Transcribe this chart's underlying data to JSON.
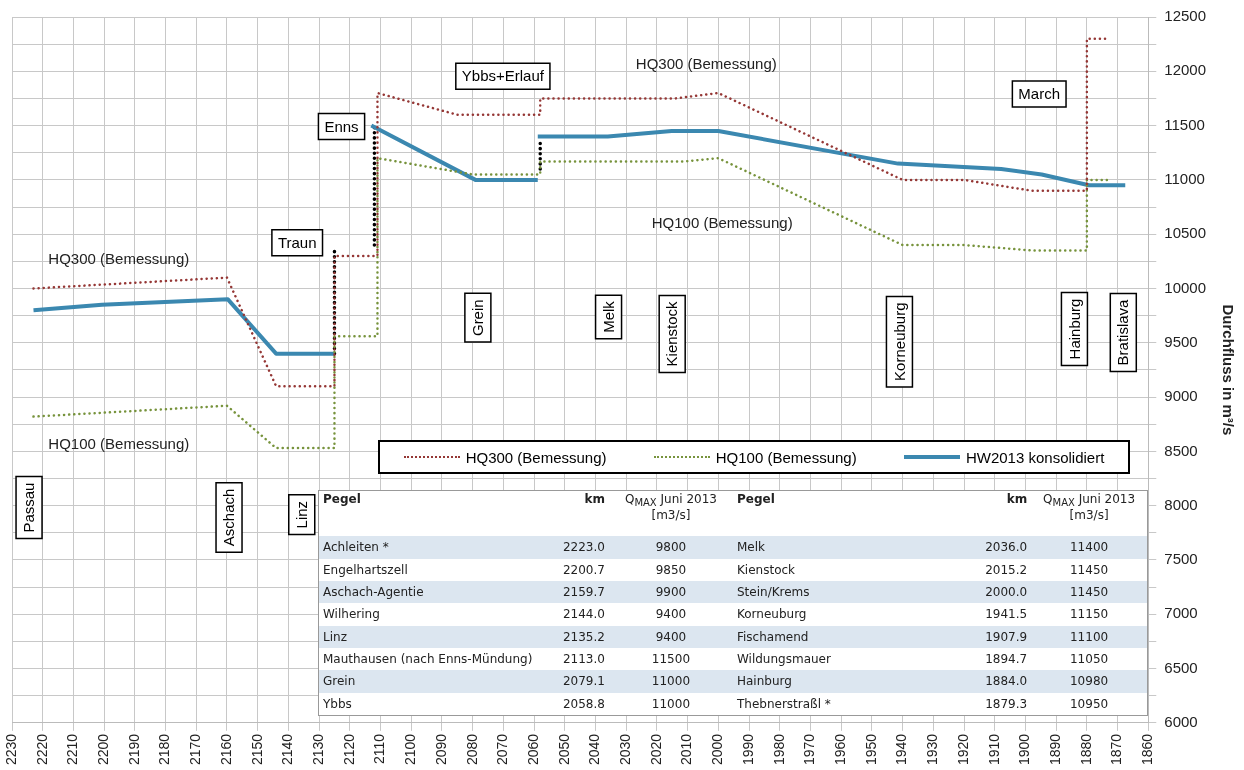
{
  "chart_data": [
    {
      "type": "line",
      "ylabel": "Durchfluss in m³/s",
      "xlim": [
        2230,
        1860
      ],
      "xticks": [
        2230,
        2220,
        2210,
        2200,
        2190,
        2180,
        2170,
        2160,
        2150,
        2140,
        2130,
        2120,
        2110,
        2100,
        2090,
        2080,
        2070,
        2060,
        2050,
        2040,
        2030,
        2020,
        2010,
        2000,
        1990,
        1980,
        1970,
        1960,
        1950,
        1940,
        1930,
        1920,
        1910,
        1900,
        1890,
        1880,
        1870,
        1860
      ],
      "ylim": [
        6000,
        12500
      ],
      "yticks": [
        6000,
        {
          "value": 6250,
          "label": null
        },
        6500,
        {
          "value": 6750,
          "label": null
        },
        7000,
        {
          "value": 7250,
          "label": null
        },
        7500,
        {
          "value": 7750,
          "label": null
        },
        8000,
        {
          "value": 8250,
          "label": null
        },
        8500,
        {
          "value": 8750,
          "label": null
        },
        9000,
        {
          "value": 9250,
          "label": null
        },
        9500,
        {
          "value": 9750,
          "label": null
        },
        10000,
        {
          "value": 10250,
          "label": null
        },
        10500,
        {
          "value": 10750,
          "label": null
        },
        11000,
        {
          "value": 11250,
          "label": null
        },
        11500,
        {
          "value": 11750,
          "label": null
        },
        12000,
        {
          "value": 12250,
          "label": null
        },
        12500
      ],
      "grid": true,
      "legend": "bottom",
      "marker": "none",
      "series": [
        {
          "name": "HQ300 (Bemessung)",
          "color": "#953735",
          "line_style": "dotted",
          "x": [
            2223,
            2160,
            2144,
            2125,
            2125,
            2111,
            2111,
            2085,
            2058,
            2058,
            2014,
            2000,
            1940,
            1920,
            1898,
            1880,
            1880,
            1872.5
          ],
          "values": [
            10000,
            10100,
            9100,
            9100,
            10300,
            10300,
            11800,
            11600,
            11600,
            11750,
            11750,
            11800,
            11000,
            11000,
            10900,
            10900,
            12300,
            12300
          ]
        },
        {
          "name": "HQ100 (Bemessung)",
          "color": "#77933c",
          "line_style": "dotted",
          "x": [
            2223,
            2160,
            2144,
            2125,
            2125,
            2111,
            2111,
            2080,
            2058,
            2058,
            2011,
            2000,
            1940,
            1920,
            1898,
            1880,
            1880,
            1872
          ],
          "values": [
            8820,
            8920,
            8530,
            8530,
            9560,
            9560,
            11200,
            11050,
            11050,
            11170,
            11170,
            11200,
            10400,
            10400,
            10350,
            10350,
            11000,
            11000
          ]
        },
        {
          "name": "HW2013 konsolidiert",
          "color": "#3b88b0",
          "line_style": "solid",
          "x": [
            2223,
            2200.7,
            2159.7,
            2144,
            2125,
            null,
            2113,
            2079.1,
            2058.8,
            null,
            2058.8,
            2036,
            2015.2,
            2000,
            1941.5,
            1907.9,
            1894.7,
            1884,
            1879.3,
            1867.5
          ],
          "values": [
            9800,
            9850,
            9900,
            9400,
            9400,
            null,
            11500,
            11000,
            11000,
            null,
            11400,
            11400,
            11450,
            11450,
            11150,
            11100,
            11050,
            10980,
            10950,
            10950
          ]
        },
        {
          "color": "#000000",
          "line_style": "dotted",
          "x": [
            2125,
            2125,
            null,
            2112,
            2112,
            null,
            2058,
            2058
          ],
          "values": [
            9400,
            10350,
            null,
            10400,
            11500,
            null,
            11100,
            11350
          ]
        }
      ],
      "annotations": [
        "HQ300 (Bemessung)",
        "HQ300 (Bemessung)",
        "HQ100 (Bemessung)",
        "HQ100 (Bemessung)",
        "Traun",
        "Enns",
        "Ybbs+Erlauf",
        "March",
        "Passau",
        "Aschach",
        "Linz",
        "Grein",
        "Melk",
        "Kienstock",
        "Korneuburg",
        "Hainburg",
        "Bratislava"
      ]
    },
    {
      "type": "other",
      "annotations": [
        "Pegel",
        "km",
        "Q$_{MAX}$ Juni 2013 [m3/s]",
        "Pegel",
        "km",
        "Q$_{MAX}$ Juni 2013 [m3/s]",
        "Achleiten  *",
        "2223.0",
        "9800",
        "Melk",
        "2036.0",
        "11400",
        "Engelhartszell",
        "2200.7",
        "9850",
        "Kienstock",
        "2015.2",
        "11450",
        "Aschach-Agentie",
        "2159.7",
        "9900",
        "Stein/Krems",
        "2000.0",
        "11450",
        "Wilhering",
        "2144.0",
        "9400",
        "Korneuburg",
        "1941.5",
        "11150",
        "Linz",
        "2135.2",
        "9400",
        "Fischamend",
        "1907.9",
        "11100",
        "Mauthausen (nach Enns-Mündung)",
        "2113.0",
        "11500",
        "Wildungsmauer",
        "1894.7",
        "11050",
        "Grein",
        "2079.1",
        "11000",
        "Hainburg",
        "1884.0",
        "10980",
        "Ybbs",
        "2058.8",
        "11000",
        "Thebnerstraßl  *",
        "1879.3",
        "10950"
      ]
    }
  ]
}
